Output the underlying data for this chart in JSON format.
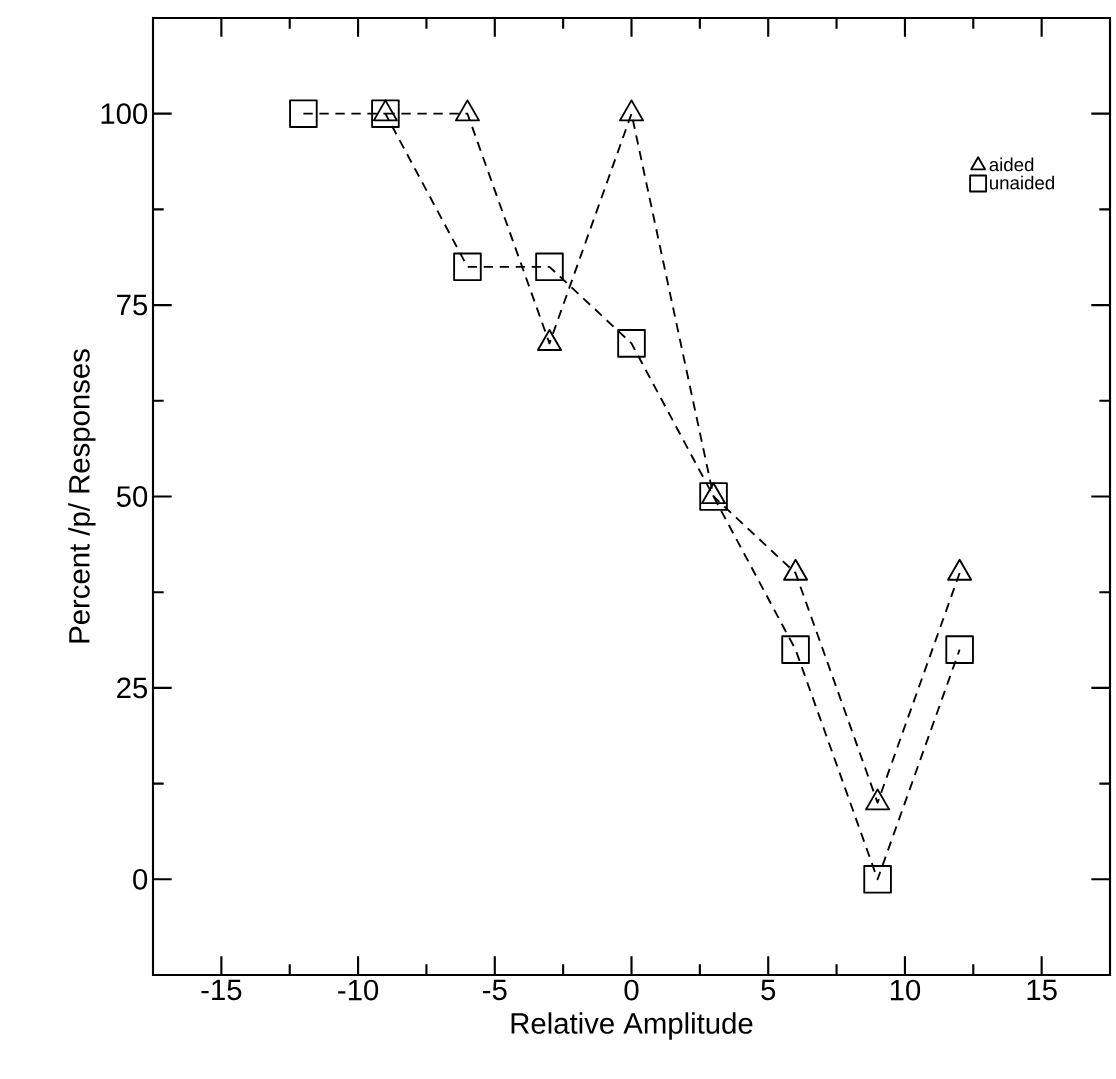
{
  "chart_data": {
    "type": "line",
    "xlabel": "Relative Amplitude",
    "ylabel": "Percent /p/ Responses",
    "xlim": [
      -17.5,
      17.5
    ],
    "ylim": [
      -12.5,
      112.5
    ],
    "xticks": [
      -15,
      -10,
      -5,
      0,
      5,
      10,
      15
    ],
    "yticks": [
      0,
      25,
      50,
      75,
      100
    ],
    "legend": "top right",
    "line_style": "dashed",
    "grid": false,
    "series": [
      {
        "name": "aided",
        "color": "#000000",
        "marker": "triangle",
        "x": [
          -9,
          -6,
          -3,
          0,
          3,
          6,
          9,
          12
        ],
        "values": [
          100,
          100,
          70,
          100,
          50,
          40,
          10,
          40
        ]
      },
      {
        "name": "unaided",
        "color": "#000000",
        "marker": "square",
        "x": [
          -12,
          -9,
          -6,
          -3,
          0,
          3,
          6,
          9,
          12
        ],
        "values": [
          100,
          100,
          80,
          80,
          70,
          50,
          30,
          0,
          30
        ]
      }
    ]
  }
}
